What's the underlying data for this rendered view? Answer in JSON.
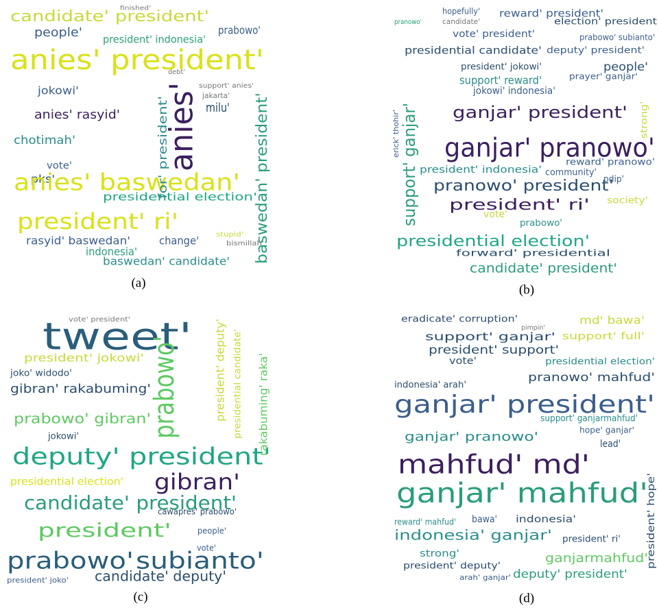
{
  "panels": [
    {
      "caption": "(a)",
      "words": [
        "candidate' president'",
        "prabowo'",
        "finished'",
        "people'",
        "president' indonesia'",
        "anies' president'",
        "jokowi'",
        "anies' rasyid'",
        "chotimah'",
        "vote'",
        "pks'",
        "anies' baswedan'",
        "presidential election'",
        "president' ri'",
        "rasyid' baswedan'",
        "indonesia'",
        "change'",
        "baswedan' candidate'",
        "anies'",
        "baswedan' president'",
        "for' president'",
        "milu'",
        "jakarta'",
        "support' anies'",
        "debt'",
        "bismillah'",
        "stupid'"
      ]
    },
    {
      "caption": "(b)",
      "words": [
        "hopefully'",
        "reward' president'",
        "pranowo'",
        "candidate'",
        "election' president",
        "vote' president'",
        "prabowo' subianto'",
        "presidential candidate'",
        "deputy' president'",
        "president' jokowi'",
        "people'",
        "support' reward'",
        "prayer' ganjar'",
        "jokowi' indonesia'",
        "ganjar' president'",
        "support' ganjar'",
        "ganjar' pranowo'",
        "reward' pranowo'",
        "president' indonesia'",
        "community'",
        "pranowo' president'",
        "pdip'",
        "president' ri'",
        "society'",
        "vote'",
        "prabowo'",
        "presidential election'",
        "forward' presidential",
        "candidate' president'",
        "strong'",
        "erick' thohir'"
      ]
    },
    {
      "caption": "(c)",
      "words": [
        "vote' president'",
        "tweet'",
        "president' jokowi'",
        "joko' widodo'",
        "gibran' rakabuming'",
        "prabowo'",
        "prabowo' gibran'",
        "jokowi'",
        "deputy' president'",
        "presidential election'",
        "gibran'",
        "candidate' president'",
        "cawapres' prabowo'",
        "president'",
        "people'",
        "vote'",
        "prabowo'",
        "subianto'",
        "candidate' deputy'",
        "president' joko'",
        "rakabuming' raka'",
        "president' deputy'",
        "presidential candidate'"
      ]
    },
    {
      "caption": "(d)",
      "words": [
        "eradicate' corruption'",
        "pimpin'",
        "md' bawa'",
        "support' ganjar'",
        "support' full'",
        "president' support'",
        "vote'",
        "presidential election'",
        "pranowo' mahfud'",
        "indonesia' arah'",
        "ganjar' president'",
        "support' ganjarmahfud'",
        "ganjar' pranowo'",
        "hope' ganjar'",
        "lead'",
        "mahfud' md'",
        "ganjar' mahfud'",
        "reward' mahfud'",
        "bawa'",
        "indonesia'",
        "indonesia' ganjar'",
        "president' ri'",
        "strong'",
        "ganjarmahfud'",
        "president' deputy'",
        "deputy' president'",
        "arah' ganjar'",
        "president' hope'"
      ]
    }
  ]
}
